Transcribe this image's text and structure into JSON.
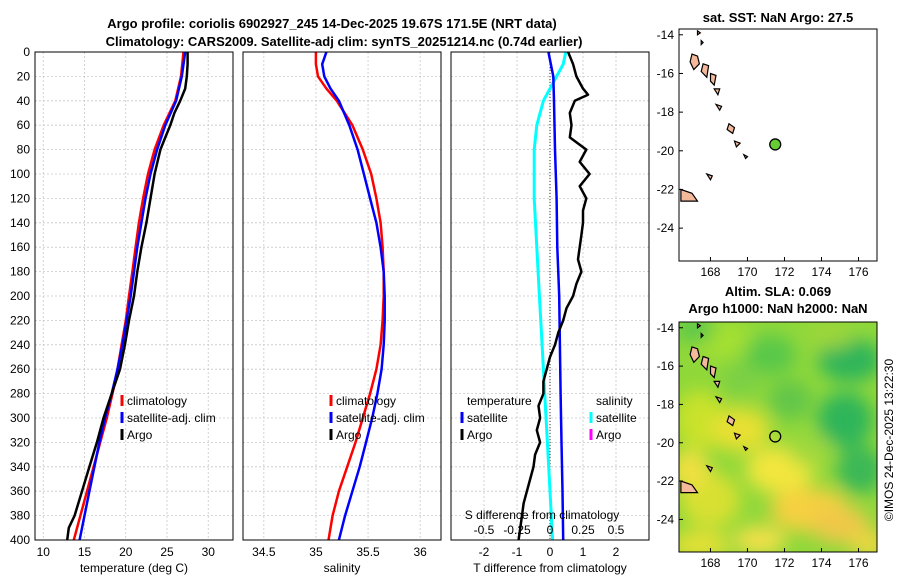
{
  "title_line1": "Argo profile: coriolis 6902927_245 14-Dec-2025 19.67S 171.5E (NRT data)",
  "title_line2": "Climatology: CARS2009. Satellite-adj clim: synTS_20251214.nc (0.74d earlier)",
  "sst_title": "sat. SST: NaN Argo: 27.5",
  "sla_title": "Altim. SLA: 0.069",
  "h_title": "Argo h1000: NaN h2000: NaN",
  "watermark": "©IMOS 24-Dec-2025 13:22:30",
  "colors": {
    "climatology": "#ff0000",
    "satellite": "#0000ff",
    "argo": "#000000",
    "salinity": "#00ffff",
    "salinity_argo": "#ff00ff",
    "land": "#f4b89a"
  },
  "chart_data": [
    {
      "type": "line",
      "panel": "temperature",
      "xlabel": "temperature (deg C)",
      "ylabel": "",
      "xlim": [
        9,
        33
      ],
      "ylim": [
        400,
        0
      ],
      "xticks": [
        "10",
        "15",
        "20",
        "25",
        "30"
      ],
      "xtick_values": [
        10,
        15,
        20,
        25,
        30
      ],
      "yticks": [
        "0",
        "20",
        "40",
        "60",
        "80",
        "100",
        "120",
        "140",
        "160",
        "180",
        "200",
        "220",
        "240",
        "260",
        "280",
        "300",
        "320",
        "340",
        "360",
        "380",
        "400"
      ],
      "ytick_values": [
        0,
        20,
        40,
        60,
        80,
        100,
        120,
        140,
        160,
        180,
        200,
        220,
        240,
        260,
        280,
        300,
        320,
        340,
        360,
        380,
        400
      ],
      "legend": [
        "climatology",
        "satellite-adj. clim",
        "Argo"
      ],
      "legend_position": "lower-right",
      "series": [
        {
          "name": "climatology",
          "depth": [
            0,
            20,
            40,
            60,
            80,
            100,
            120,
            140,
            160,
            180,
            200,
            220,
            240,
            260,
            280,
            300,
            320,
            340,
            360,
            380,
            400
          ],
          "values": [
            27.0,
            26.7,
            26.0,
            24.6,
            23.5,
            22.7,
            22.1,
            21.6,
            21.2,
            20.8,
            20.4,
            20.0,
            19.5,
            19.0,
            18.4,
            17.7,
            16.9,
            16.1,
            15.3,
            14.5,
            13.7
          ]
        },
        {
          "name": "satellite-adj. clim",
          "depth": [
            0,
            20,
            40,
            60,
            80,
            100,
            120,
            140,
            160,
            180,
            200,
            220,
            240,
            260,
            280,
            300,
            320,
            340,
            360,
            380,
            400
          ],
          "values": [
            27.2,
            26.8,
            26.1,
            24.8,
            23.8,
            23.0,
            22.4,
            21.9,
            21.4,
            21.0,
            20.6,
            20.1,
            19.6,
            19.0,
            18.3,
            17.5,
            16.8,
            16.2,
            15.6,
            15.0,
            14.4
          ]
        },
        {
          "name": "Argo",
          "depth": [
            0,
            10,
            20,
            30,
            40,
            50,
            60,
            70,
            80,
            100,
            120,
            140,
            160,
            180,
            200,
            220,
            240,
            260,
            280,
            300,
            320,
            340,
            360,
            380,
            390,
            400
          ],
          "values": [
            27.5,
            27.5,
            27.4,
            27.2,
            26.6,
            25.9,
            25.4,
            24.8,
            24.2,
            23.5,
            23.0,
            22.5,
            21.9,
            21.4,
            21.0,
            20.4,
            19.9,
            19.3,
            18.3,
            17.3,
            16.5,
            15.6,
            14.7,
            13.8,
            13.1,
            12.9
          ]
        }
      ]
    },
    {
      "type": "line",
      "panel": "salinity",
      "xlabel": "salinity",
      "xlim": [
        34.3,
        36.2
      ],
      "ylim": [
        400,
        0
      ],
      "xticks": [
        "34.5",
        "35",
        "35.5",
        "36"
      ],
      "xtick_values": [
        34.5,
        35,
        35.5,
        36
      ],
      "legend": [
        "climatology",
        "satellite-adj. clim",
        "Argo"
      ],
      "legend_position": "lower-right",
      "series": [
        {
          "name": "climatology",
          "depth": [
            0,
            10,
            20,
            30,
            40,
            60,
            80,
            100,
            120,
            140,
            160,
            180,
            200,
            220,
            240,
            260,
            280,
            300,
            320,
            340,
            360,
            380,
            400
          ],
          "values": [
            35.0,
            35.0,
            35.02,
            35.1,
            35.2,
            35.35,
            35.45,
            35.53,
            35.58,
            35.62,
            35.64,
            35.65,
            35.65,
            35.64,
            35.62,
            35.58,
            35.52,
            35.45,
            35.38,
            35.3,
            35.22,
            35.16,
            35.12
          ]
        },
        {
          "name": "satellite-adj. clim",
          "depth": [
            0,
            10,
            20,
            30,
            40,
            60,
            80,
            100,
            120,
            140,
            160,
            180,
            200,
            220,
            240,
            260,
            280,
            300,
            320,
            340,
            360,
            380,
            400
          ],
          "values": [
            35.1,
            35.06,
            35.08,
            35.14,
            35.22,
            35.32,
            35.4,
            35.46,
            35.52,
            35.58,
            35.62,
            35.65,
            35.66,
            35.66,
            35.65,
            35.63,
            35.59,
            35.54,
            35.48,
            35.42,
            35.35,
            35.28,
            35.22
          ]
        }
      ]
    },
    {
      "type": "line",
      "panel": "difference",
      "xlabel": "T difference from climatology",
      "xlabel_top": "S difference from climatology",
      "xlim": [
        -3,
        3
      ],
      "ylim": [
        400,
        0
      ],
      "xticks": [
        "-2",
        "-1",
        "0",
        "1",
        "2"
      ],
      "xtick_values": [
        -2,
        -1,
        0,
        1,
        2
      ],
      "xticks_top": [
        "-0.5",
        "-0.25",
        "0",
        "0.25",
        "0.5"
      ],
      "xtick_top_values": [
        -0.5,
        -0.25,
        0,
        0.25,
        0.5
      ],
      "legend": [
        "temperature",
        "satellite",
        "Argo",
        "salinity",
        "satellite",
        "Argo"
      ],
      "legend_position": "lower-center",
      "series": [
        {
          "name": "T satellite",
          "depth": [
            0,
            20,
            40,
            80,
            120,
            160,
            200,
            240,
            280,
            320,
            360,
            400
          ],
          "values": [
            -0.05,
            0.1,
            0.12,
            0.15,
            0.2,
            0.22,
            0.28,
            0.3,
            0.32,
            0.35,
            0.38,
            0.4
          ]
        },
        {
          "name": "T Argo",
          "depth": [
            0,
            10,
            20,
            30,
            35,
            40,
            50,
            60,
            70,
            80,
            90,
            100,
            110,
            120,
            130,
            140,
            150,
            160,
            170,
            180,
            190,
            200,
            210,
            220,
            230,
            240,
            250,
            260,
            270,
            280,
            290,
            300,
            310,
            320,
            330,
            340,
            350,
            360,
            370,
            380,
            390,
            400
          ],
          "values": [
            0.55,
            0.7,
            0.8,
            1.0,
            1.15,
            0.75,
            0.6,
            0.65,
            0.6,
            1.1,
            0.9,
            1.2,
            0.9,
            1.1,
            1.0,
            1.0,
            0.95,
            0.9,
            0.85,
            0.95,
            0.8,
            0.7,
            0.5,
            0.4,
            0.25,
            0.15,
            0.0,
            -0.1,
            -0.2,
            -0.2,
            -0.35,
            -0.3,
            -0.4,
            -0.3,
            -0.45,
            -0.5,
            -0.6,
            -0.7,
            -0.8,
            -0.85,
            -0.9,
            -0.95
          ]
        },
        {
          "name": "S satellite",
          "depth": [
            0,
            10,
            20,
            40,
            60,
            80,
            100,
            120,
            160,
            200,
            240,
            280,
            320,
            360,
            400
          ],
          "values": [
            0.12,
            0.1,
            0.05,
            -0.05,
            -0.1,
            -0.12,
            -0.12,
            -0.12,
            -0.1,
            -0.08,
            -0.06,
            -0.04,
            -0.02,
            0.0,
            0.02
          ]
        }
      ]
    },
    {
      "type": "map",
      "panel": "sat. SST",
      "xticks": [
        "168",
        "170",
        "172",
        "174",
        "176"
      ],
      "xtick_values": [
        168,
        170,
        172,
        174,
        176
      ],
      "yticks": [
        "-14",
        "-16",
        "-18",
        "-20",
        "-22",
        "-24"
      ],
      "ytick_values": [
        -14,
        -16,
        -18,
        -20,
        -22,
        -24
      ],
      "xlim": [
        166.3,
        177
      ],
      "ylim": [
        -25.7,
        -13.7
      ],
      "marker": {
        "lon": 171.5,
        "lat": -19.67,
        "fill": "#66cc33"
      }
    },
    {
      "type": "map",
      "panel": "Altim. SLA",
      "xticks": [
        "168",
        "170",
        "172",
        "174",
        "176"
      ],
      "xtick_values": [
        168,
        170,
        172,
        174,
        176
      ],
      "yticks": [
        "-14",
        "-16",
        "-18",
        "-20",
        "-22",
        "-24"
      ],
      "ytick_values": [
        -14,
        -16,
        -18,
        -20,
        -22,
        -24
      ],
      "xlim": [
        166.3,
        177
      ],
      "ylim": [
        -25.7,
        -13.7
      ],
      "marker": {
        "lon": 171.5,
        "lat": -19.67,
        "fill": "none"
      }
    }
  ]
}
